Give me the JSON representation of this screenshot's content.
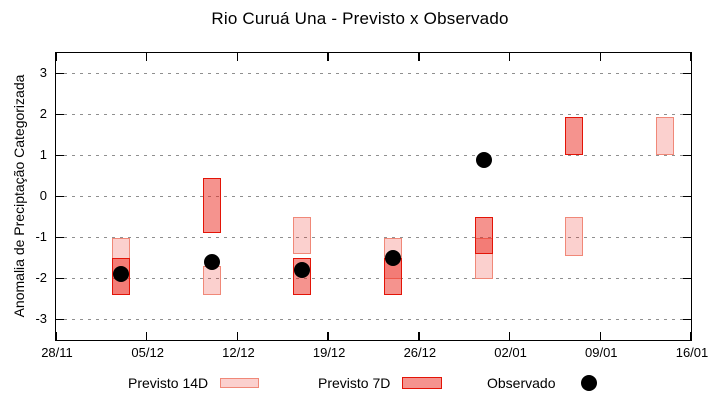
{
  "title": "Rio Curuá Una - Previsto x Observado",
  "chart_data": {
    "type": "candlestick",
    "title": "Rio Curuá Una - Previsto x Observado",
    "xlabel": "",
    "ylabel": "Anomalia de Preciptação Categorizada",
    "grid": "horizontal-dashed",
    "legend_position": "bottom",
    "ylim": [
      -3.5,
      3.5
    ],
    "y_tick_values": [
      3,
      2,
      1,
      0,
      -1,
      -2,
      -3
    ],
    "x_tick_labels": [
      "28/11",
      "05/12",
      "12/12",
      "19/12",
      "26/12",
      "02/01",
      "09/01",
      "16/01"
    ],
    "x_total_days": 49,
    "series": {
      "previsto_14d": {
        "label": "Previsto 14D",
        "boxes": [
          {
            "date": "03/12",
            "day": 5,
            "hi": -1.0,
            "lo": -2.4
          },
          {
            "date": "10/12",
            "day": 12,
            "hi": -1.7,
            "lo": -2.4
          },
          {
            "date": "17/12",
            "day": 19,
            "hi": -0.5,
            "lo": -1.4
          },
          {
            "date": "24/12",
            "day": 26,
            "hi": -1.0,
            "lo": -2.0
          },
          {
            "date": "31/12",
            "day": 33,
            "hi": -1.0,
            "lo": -2.0
          },
          {
            "date": "07/01",
            "day": 40,
            "hi": -0.5,
            "lo": -1.45
          },
          {
            "date": "14/01",
            "day": 47,
            "hi": 1.95,
            "lo": 1.0
          }
        ]
      },
      "previsto_7d": {
        "label": "Previsto 7D",
        "boxes": [
          {
            "date": "03/12",
            "day": 5,
            "hi": -1.5,
            "lo": -2.4
          },
          {
            "date": "10/12",
            "day": 12,
            "hi": 0.45,
            "lo": -0.9
          },
          {
            "date": "17/12",
            "day": 19,
            "hi": -1.5,
            "lo": -2.4
          },
          {
            "date": "24/12",
            "day": 26,
            "hi": -1.5,
            "lo": -2.4
          },
          {
            "date": "31/12",
            "day": 33,
            "hi": -0.5,
            "lo": -1.4
          },
          {
            "date": "07/01",
            "day": 40,
            "hi": 1.95,
            "lo": 1.0
          }
        ]
      },
      "observado": {
        "label": "Observado",
        "points": [
          {
            "date": "03/12",
            "day": 5,
            "value": -1.9
          },
          {
            "date": "10/12",
            "day": 12,
            "value": -1.6
          },
          {
            "date": "17/12",
            "day": 19,
            "value": -1.8
          },
          {
            "date": "24/12",
            "day": 26,
            "value": -1.5
          },
          {
            "date": "31/12",
            "day": 33,
            "value": 0.9
          }
        ]
      }
    },
    "colors": {
      "previsto_14d_fill": "rgba(235,40,30,0.22)",
      "previsto_14d_border": "#f08878",
      "previsto_7d_fill": "rgba(235,40,30,0.50)",
      "previsto_7d_border": "#e31407",
      "observado": "#000000",
      "grid": "#8f8f8f",
      "frame": "#000000"
    }
  }
}
